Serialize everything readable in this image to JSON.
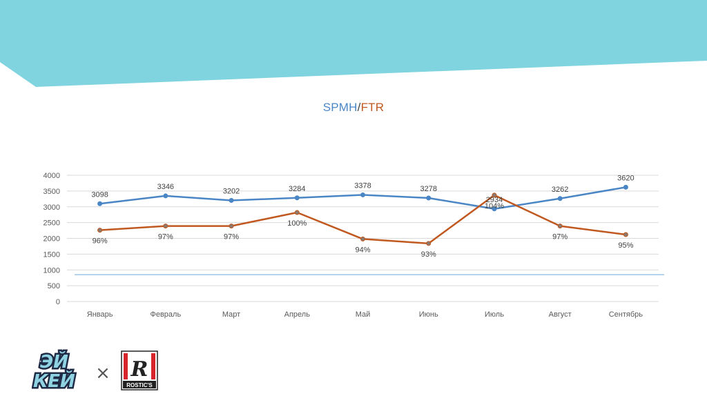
{
  "colors": {
    "banner": "#7fd4df",
    "spmh": "#4a86c5",
    "ftr": "#c0581f",
    "grid": "#d9d9d9",
    "axis_text": "#595959",
    "hline": "#9dc3e6"
  },
  "chart_data": {
    "type": "line",
    "title_parts": [
      "SPMH",
      "/",
      "FTR"
    ],
    "categories": [
      "Январь",
      "Февраль",
      "Март",
      "Апрель",
      "Май",
      "Июнь",
      "Июль",
      "Август",
      "Сентябрь"
    ],
    "ylim": [
      0,
      4000
    ],
    "yticks": [
      "0",
      "500",
      "1000",
      "1500",
      "2000",
      "2500",
      "3000",
      "3500",
      "4000"
    ],
    "grid": true,
    "reference_line_value": 850,
    "series": [
      {
        "name": "SPMH",
        "values": [
          3098,
          3346,
          3202,
          3284,
          3378,
          3278,
          2934,
          3262,
          3620
        ],
        "labels": [
          "3098",
          "3346",
          "3202",
          "3284",
          "3378",
          "3278",
          "2934",
          "3262",
          "3620"
        ]
      },
      {
        "name": "FTR",
        "values": [
          2260,
          2390,
          2390,
          2820,
          1980,
          1840,
          3370,
          2390,
          2120
        ],
        "labels": [
          "96%",
          "97%",
          "97%",
          "100%",
          "94%",
          "93%",
          "104%",
          "97%",
          "95%"
        ]
      }
    ]
  },
  "logos": {
    "left_text": [
      "ЭЙ",
      "КЕЙ"
    ],
    "separator": "×",
    "right_letter": "R",
    "right_text": "ROSTIC'S"
  }
}
